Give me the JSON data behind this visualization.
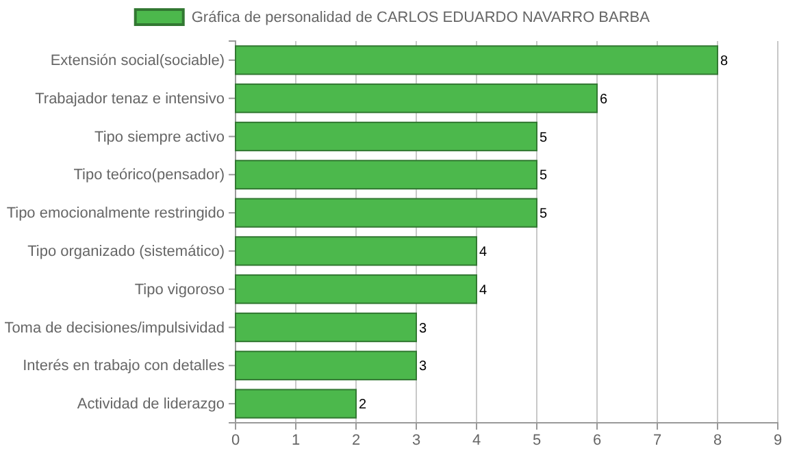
{
  "chart_data": {
    "type": "bar",
    "orientation": "horizontal",
    "categories": [
      "Extensión social(sociable)",
      "Trabajador tenaz e intensivo",
      "Tipo siempre activo",
      "Tipo teórico(pensador)",
      "Tipo emocionalmente restringido",
      "Tipo organizado (sistemático)",
      "Tipo vigoroso",
      "Toma de decisiones/impulsividad",
      "Interés en trabajo con detalles",
      "Actividad de liderazgo"
    ],
    "series": [
      {
        "name": "Gráfica de personalidad de CARLOS EDUARDO NAVARRO BARBA",
        "color": "#4cb84c",
        "values": [
          8,
          6,
          5,
          5,
          5,
          4,
          4,
          3,
          3,
          2
        ]
      }
    ],
    "xlim": [
      0,
      9
    ],
    "xticks": [
      0,
      1,
      2,
      3,
      4,
      5,
      6,
      7,
      8,
      9
    ],
    "grid": "x",
    "legend": "top",
    "data_labels": true
  }
}
